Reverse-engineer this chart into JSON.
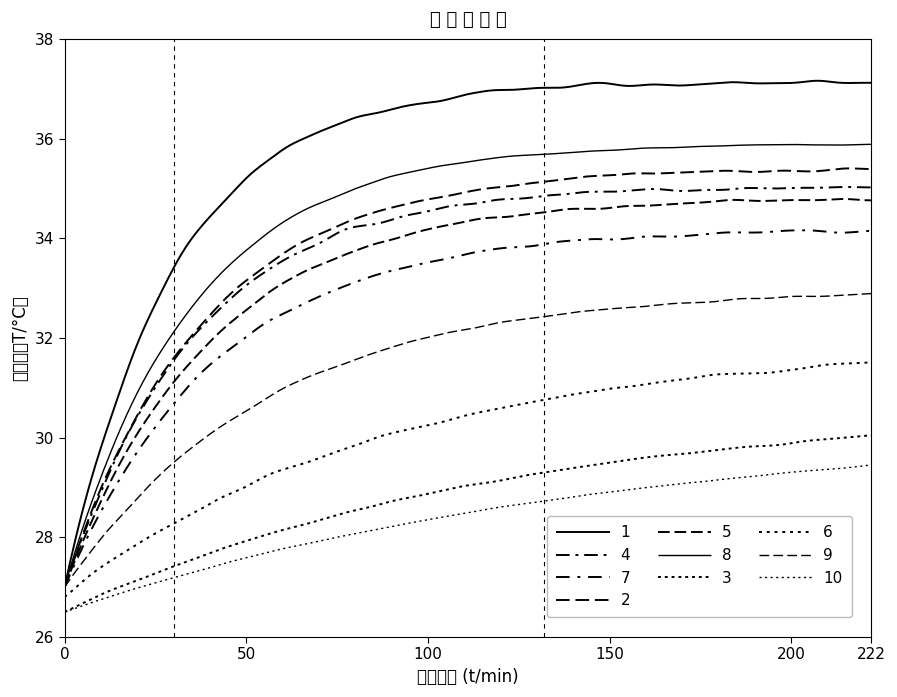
{
  "title": "温 升 曲 线 图",
  "xlabel": "测量时间 (t/min)",
  "ylabel": "温度值（T/°C）",
  "xlim": [
    0,
    222
  ],
  "ylim": [
    26,
    38
  ],
  "xticks": [
    0,
    50,
    100,
    150,
    200,
    222
  ],
  "xticklabels": [
    "0",
    "50",
    "100",
    "150",
    "200",
    "222"
  ],
  "yticks": [
    26,
    28,
    30,
    32,
    34,
    36,
    38
  ],
  "vline1": 30,
  "vline2": 132,
  "series": [
    {
      "label": "1",
      "linestyle": "solid",
      "linewidth": 1.4,
      "tau": 30,
      "start": 27.0,
      "end": 37.2,
      "noise": 0.18,
      "extra_rise": 0.0
    },
    {
      "label": "2",
      "linestyle": "dashed",
      "linewidth": 1.4,
      "tau": 38,
      "start": 27.0,
      "end": 35.4,
      "noise": 0.1,
      "extra_rise": 0.0
    },
    {
      "label": "3",
      "linestyle": "dotted",
      "linewidth": 1.4,
      "tau": 120,
      "start": 26.5,
      "end": 30.7,
      "noise": 0.05,
      "extra_rise": 0.0
    },
    {
      "label": "4",
      "linestyle": "dashdot",
      "linewidth": 1.4,
      "tau": 36,
      "start": 27.0,
      "end": 35.1,
      "noise": 0.12,
      "extra_rise": 0.0
    },
    {
      "label": "5",
      "linestyle": "densely_dashed",
      "linewidth": 1.4,
      "tau": 40,
      "start": 27.0,
      "end": 34.8,
      "noise": 0.1,
      "extra_rise": 0.0
    },
    {
      "label": "6",
      "linestyle": "densely_dotted",
      "linewidth": 1.4,
      "tau": 90,
      "start": 26.8,
      "end": 31.9,
      "noise": 0.12,
      "extra_rise": 0.0
    },
    {
      "label": "7",
      "linestyle": "loosely_dashdot",
      "linewidth": 1.4,
      "tau": 42,
      "start": 27.0,
      "end": 34.2,
      "noise": 0.1,
      "extra_rise": 0.0
    },
    {
      "label": "8",
      "linestyle": "solid_thin",
      "linewidth": 1.0,
      "tau": 35,
      "start": 27.0,
      "end": 35.9,
      "noise": 0.08,
      "extra_rise": 0.0
    },
    {
      "label": "9",
      "linestyle": "dashed_thin",
      "linewidth": 1.0,
      "tau": 55,
      "start": 27.0,
      "end": 33.0,
      "noise": 0.08,
      "extra_rise": 0.0
    },
    {
      "label": "10",
      "linestyle": "dotted_thin",
      "linewidth": 1.0,
      "tau": 150,
      "start": 26.5,
      "end": 30.3,
      "noise": 0.04,
      "extra_rise": 0.0
    }
  ]
}
